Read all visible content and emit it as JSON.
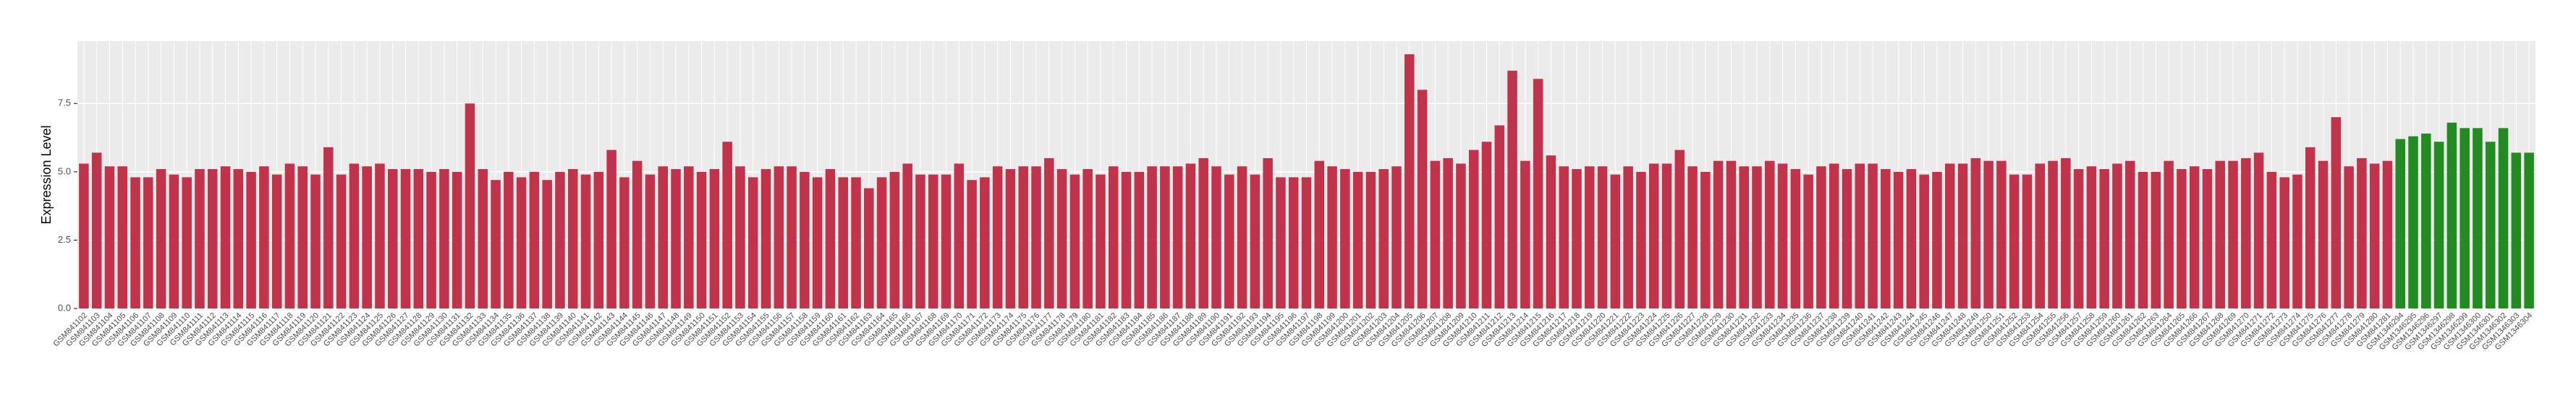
{
  "chart_data": {
    "type": "bar",
    "y_label": "Expression Level",
    "ylim": [
      0,
      9.78
    ],
    "yticks": [
      {
        "value": 0,
        "label": "0.0"
      },
      2.5,
      {
        "value": 5,
        "label": "5.0"
      },
      7.5
    ],
    "grid": true,
    "categories": [
      "GSM841102",
      "GSM841103",
      "GSM841104",
      "GSM841105",
      "GSM841106",
      "GSM841107",
      "GSM841108",
      "GSM841109",
      "GSM841110",
      "GSM841111",
      "GSM841112",
      "GSM841113",
      "GSM841114",
      "GSM841115",
      "GSM841116",
      "GSM841117",
      "GSM841118",
      "GSM841119",
      "GSM841120",
      "GSM841121",
      "GSM841122",
      "GSM841123",
      "GSM841124",
      "GSM841125",
      "GSM841126",
      "GSM841127",
      "GSM841128",
      "GSM841129",
      "GSM841130",
      "GSM841131",
      "GSM841132",
      "GSM841133",
      "GSM841134",
      "GSM841135",
      "GSM841136",
      "GSM841137",
      "GSM841138",
      "GSM841139",
      "GSM841140",
      "GSM841141",
      "GSM841142",
      "GSM841143",
      "GSM841144",
      "GSM841145",
      "GSM841146",
      "GSM841147",
      "GSM841148",
      "GSM841149",
      "GSM841150",
      "GSM841151",
      "GSM841152",
      "GSM841153",
      "GSM841154",
      "GSM841155",
      "GSM841156",
      "GSM841157",
      "GSM841158",
      "GSM841159",
      "GSM841160",
      "GSM841161",
      "GSM841162",
      "GSM841163",
      "GSM841164",
      "GSM841165",
      "GSM841166",
      "GSM841167",
      "GSM841168",
      "GSM841169",
      "GSM841170",
      "GSM841171",
      "GSM841172",
      "GSM841173",
      "GSM841174",
      "GSM841175",
      "GSM841176",
      "GSM841177",
      "GSM841178",
      "GSM841179",
      "GSM841180",
      "GSM841181",
      "GSM841182",
      "GSM841183",
      "GSM841184",
      "GSM841185",
      "GSM841186",
      "GSM841187",
      "GSM841188",
      "GSM841189",
      "GSM841190",
      "GSM841191",
      "GSM841192",
      "GSM841193",
      "GSM841194",
      "GSM841195",
      "GSM841196",
      "GSM841197",
      "GSM841198",
      "GSM841199",
      "GSM841200",
      "GSM841201",
      "GSM841202",
      "GSM841203",
      "GSM841204",
      "GSM841205",
      "GSM841206",
      "GSM841207",
      "GSM841208",
      "GSM841209",
      "GSM841210",
      "GSM841211",
      "GSM841212",
      "GSM841213",
      "GSM841214",
      "GSM841215",
      "GSM841216",
      "GSM841217",
      "GSM841218",
      "GSM841219",
      "GSM841220",
      "GSM841221",
      "GSM841222",
      "GSM841223",
      "GSM841224",
      "GSM841225",
      "GSM841226",
      "GSM841227",
      "GSM841228",
      "GSM841229",
      "GSM841230",
      "GSM841231",
      "GSM841232",
      "GSM841233",
      "GSM841234",
      "GSM841235",
      "GSM841236",
      "GSM841237",
      "GSM841238",
      "GSM841239",
      "GSM841240",
      "GSM841241",
      "GSM841242",
      "GSM841243",
      "GSM841244",
      "GSM841245",
      "GSM841246",
      "GSM841247",
      "GSM841248",
      "GSM841249",
      "GSM841250",
      "GSM841251",
      "GSM841252",
      "GSM841253",
      "GSM841254",
      "GSM841255",
      "GSM841256",
      "GSM841257",
      "GSM841258",
      "GSM841259",
      "GSM841260",
      "GSM841261",
      "GSM841262",
      "GSM841263",
      "GSM841264",
      "GSM841265",
      "GSM841266",
      "GSM841267",
      "GSM841268",
      "GSM841269",
      "GSM841270",
      "GSM841271",
      "GSM841272",
      "GSM841273",
      "GSM841274",
      "GSM841275",
      "GSM841276",
      "GSM841277",
      "GSM841278",
      "GSM841279",
      "GSM841280",
      "GSM841281",
      "GSM1346294",
      "GSM1346295",
      "GSM1346296",
      "GSM1346297",
      "GSM1346298",
      "GSM1346299",
      "GSM1346300",
      "GSM1346301",
      "GSM1346302",
      "GSM1346303",
      "GSM1346304"
    ],
    "values": [
      5.3,
      5.7,
      5.2,
      5.2,
      4.8,
      4.8,
      5.1,
      4.9,
      4.8,
      5.1,
      5.1,
      5.2,
      5.1,
      5.0,
      5.2,
      4.9,
      5.3,
      5.2,
      4.9,
      5.9,
      4.9,
      5.3,
      5.2,
      5.3,
      5.1,
      5.1,
      5.1,
      5.0,
      5.1,
      5.0,
      7.5,
      5.1,
      4.7,
      5.0,
      4.8,
      5.0,
      4.7,
      5.0,
      5.1,
      4.9,
      5.0,
      5.8,
      4.8,
      5.4,
      4.9,
      5.2,
      5.1,
      5.2,
      5.0,
      5.1,
      6.1,
      5.2,
      4.8,
      5.1,
      5.2,
      5.2,
      5.0,
      4.8,
      5.1,
      4.8,
      4.8,
      4.4,
      4.8,
      5.0,
      5.3,
      4.9,
      4.9,
      4.9,
      5.3,
      4.7,
      4.8,
      5.2,
      5.1,
      5.2,
      5.2,
      5.5,
      5.1,
      4.9,
      5.1,
      4.9,
      5.2,
      5.0,
      5.0,
      5.2,
      5.2,
      5.2,
      5.3,
      5.5,
      5.2,
      4.9,
      5.2,
      4.9,
      5.5,
      4.8,
      4.8,
      4.8,
      5.4,
      5.2,
      5.1,
      5.0,
      5.0,
      5.1,
      5.2,
      9.3,
      8.0,
      5.4,
      5.5,
      5.3,
      5.8,
      6.1,
      6.7,
      8.7,
      5.4,
      8.4,
      5.6,
      5.2,
      5.1,
      5.2,
      5.2,
      4.9,
      5.2,
      5.0,
      5.3,
      5.3,
      5.8,
      5.2,
      5.0,
      5.4,
      5.4,
      5.2,
      5.2,
      5.4,
      5.3,
      5.1,
      4.9,
      5.2,
      5.3,
      5.1,
      5.3,
      5.3,
      5.1,
      5.0,
      5.1,
      4.9,
      5.0,
      5.3,
      5.3,
      5.5,
      5.4,
      5.4,
      4.9,
      4.9,
      5.3,
      5.4,
      5.5,
      5.1,
      5.2,
      5.1,
      5.3,
      5.4,
      5.0,
      5.0,
      5.4,
      5.1,
      5.2,
      5.1,
      5.4,
      5.4,
      5.5,
      5.7,
      5.0,
      4.8,
      4.9,
      5.9,
      5.4,
      7.0,
      5.2,
      5.5,
      5.3,
      5.4,
      6.2,
      6.3,
      6.4,
      6.1,
      6.8,
      6.6,
      6.6,
      6.1,
      6.6,
      5.7,
      5.7
    ],
    "colors": [
      "#c0334a",
      "#c0334a",
      "#c0334a",
      "#c0334a",
      "#c0334a",
      "#c0334a",
      "#c0334a",
      "#c0334a",
      "#c0334a",
      "#c0334a",
      "#c0334a",
      "#c0334a",
      "#c0334a",
      "#c0334a",
      "#c0334a",
      "#c0334a",
      "#c0334a",
      "#c0334a",
      "#c0334a",
      "#c0334a",
      "#c0334a",
      "#c0334a",
      "#c0334a",
      "#c0334a",
      "#c0334a",
      "#c0334a",
      "#c0334a",
      "#c0334a",
      "#c0334a",
      "#c0334a",
      "#c0334a",
      "#c0334a",
      "#c0334a",
      "#c0334a",
      "#c0334a",
      "#c0334a",
      "#c0334a",
      "#c0334a",
      "#c0334a",
      "#c0334a",
      "#c0334a",
      "#c0334a",
      "#c0334a",
      "#c0334a",
      "#c0334a",
      "#c0334a",
      "#c0334a",
      "#c0334a",
      "#c0334a",
      "#c0334a",
      "#c0334a",
      "#c0334a",
      "#c0334a",
      "#c0334a",
      "#c0334a",
      "#c0334a",
      "#c0334a",
      "#c0334a",
      "#c0334a",
      "#c0334a",
      "#c0334a",
      "#c0334a",
      "#c0334a",
      "#c0334a",
      "#c0334a",
      "#c0334a",
      "#c0334a",
      "#c0334a",
      "#c0334a",
      "#c0334a",
      "#c0334a",
      "#c0334a",
      "#c0334a",
      "#c0334a",
      "#c0334a",
      "#c0334a",
      "#c0334a",
      "#c0334a",
      "#c0334a",
      "#c0334a",
      "#c0334a",
      "#c0334a",
      "#c0334a",
      "#c0334a",
      "#c0334a",
      "#c0334a",
      "#c0334a",
      "#c0334a",
      "#c0334a",
      "#c0334a",
      "#c0334a",
      "#c0334a",
      "#c0334a",
      "#c0334a",
      "#c0334a",
      "#c0334a",
      "#c0334a",
      "#c0334a",
      "#c0334a",
      "#c0334a",
      "#c0334a",
      "#c0334a",
      "#c0334a",
      "#c0334a",
      "#c0334a",
      "#c0334a",
      "#c0334a",
      "#c0334a",
      "#c0334a",
      "#c0334a",
      "#c0334a",
      "#c0334a",
      "#c0334a",
      "#c0334a",
      "#c0334a",
      "#c0334a",
      "#c0334a",
      "#c0334a",
      "#c0334a",
      "#c0334a",
      "#c0334a",
      "#c0334a",
      "#c0334a",
      "#c0334a",
      "#c0334a",
      "#c0334a",
      "#c0334a",
      "#c0334a",
      "#c0334a",
      "#c0334a",
      "#c0334a",
      "#c0334a",
      "#c0334a",
      "#c0334a",
      "#c0334a",
      "#c0334a",
      "#c0334a",
      "#c0334a",
      "#c0334a",
      "#c0334a",
      "#c0334a",
      "#c0334a",
      "#c0334a",
      "#c0334a",
      "#c0334a",
      "#c0334a",
      "#c0334a",
      "#c0334a",
      "#c0334a",
      "#c0334a",
      "#c0334a",
      "#c0334a",
      "#c0334a",
      "#c0334a",
      "#c0334a",
      "#c0334a",
      "#c0334a",
      "#c0334a",
      "#c0334a",
      "#c0334a",
      "#c0334a",
      "#c0334a",
      "#c0334a",
      "#c0334a",
      "#c0334a",
      "#c0334a",
      "#c0334a",
      "#c0334a",
      "#c0334a",
      "#c0334a",
      "#c0334a",
      "#c0334a",
      "#c0334a",
      "#c0334a",
      "#c0334a",
      "#c0334a",
      "#c0334a",
      "#c0334a",
      "#c0334a",
      "#c0334a",
      "#228b22",
      "#228b22",
      "#228b22",
      "#228b22",
      "#228b22",
      "#228b22",
      "#228b22",
      "#228b22",
      "#228b22",
      "#228b22",
      "#228b22"
    ]
  }
}
